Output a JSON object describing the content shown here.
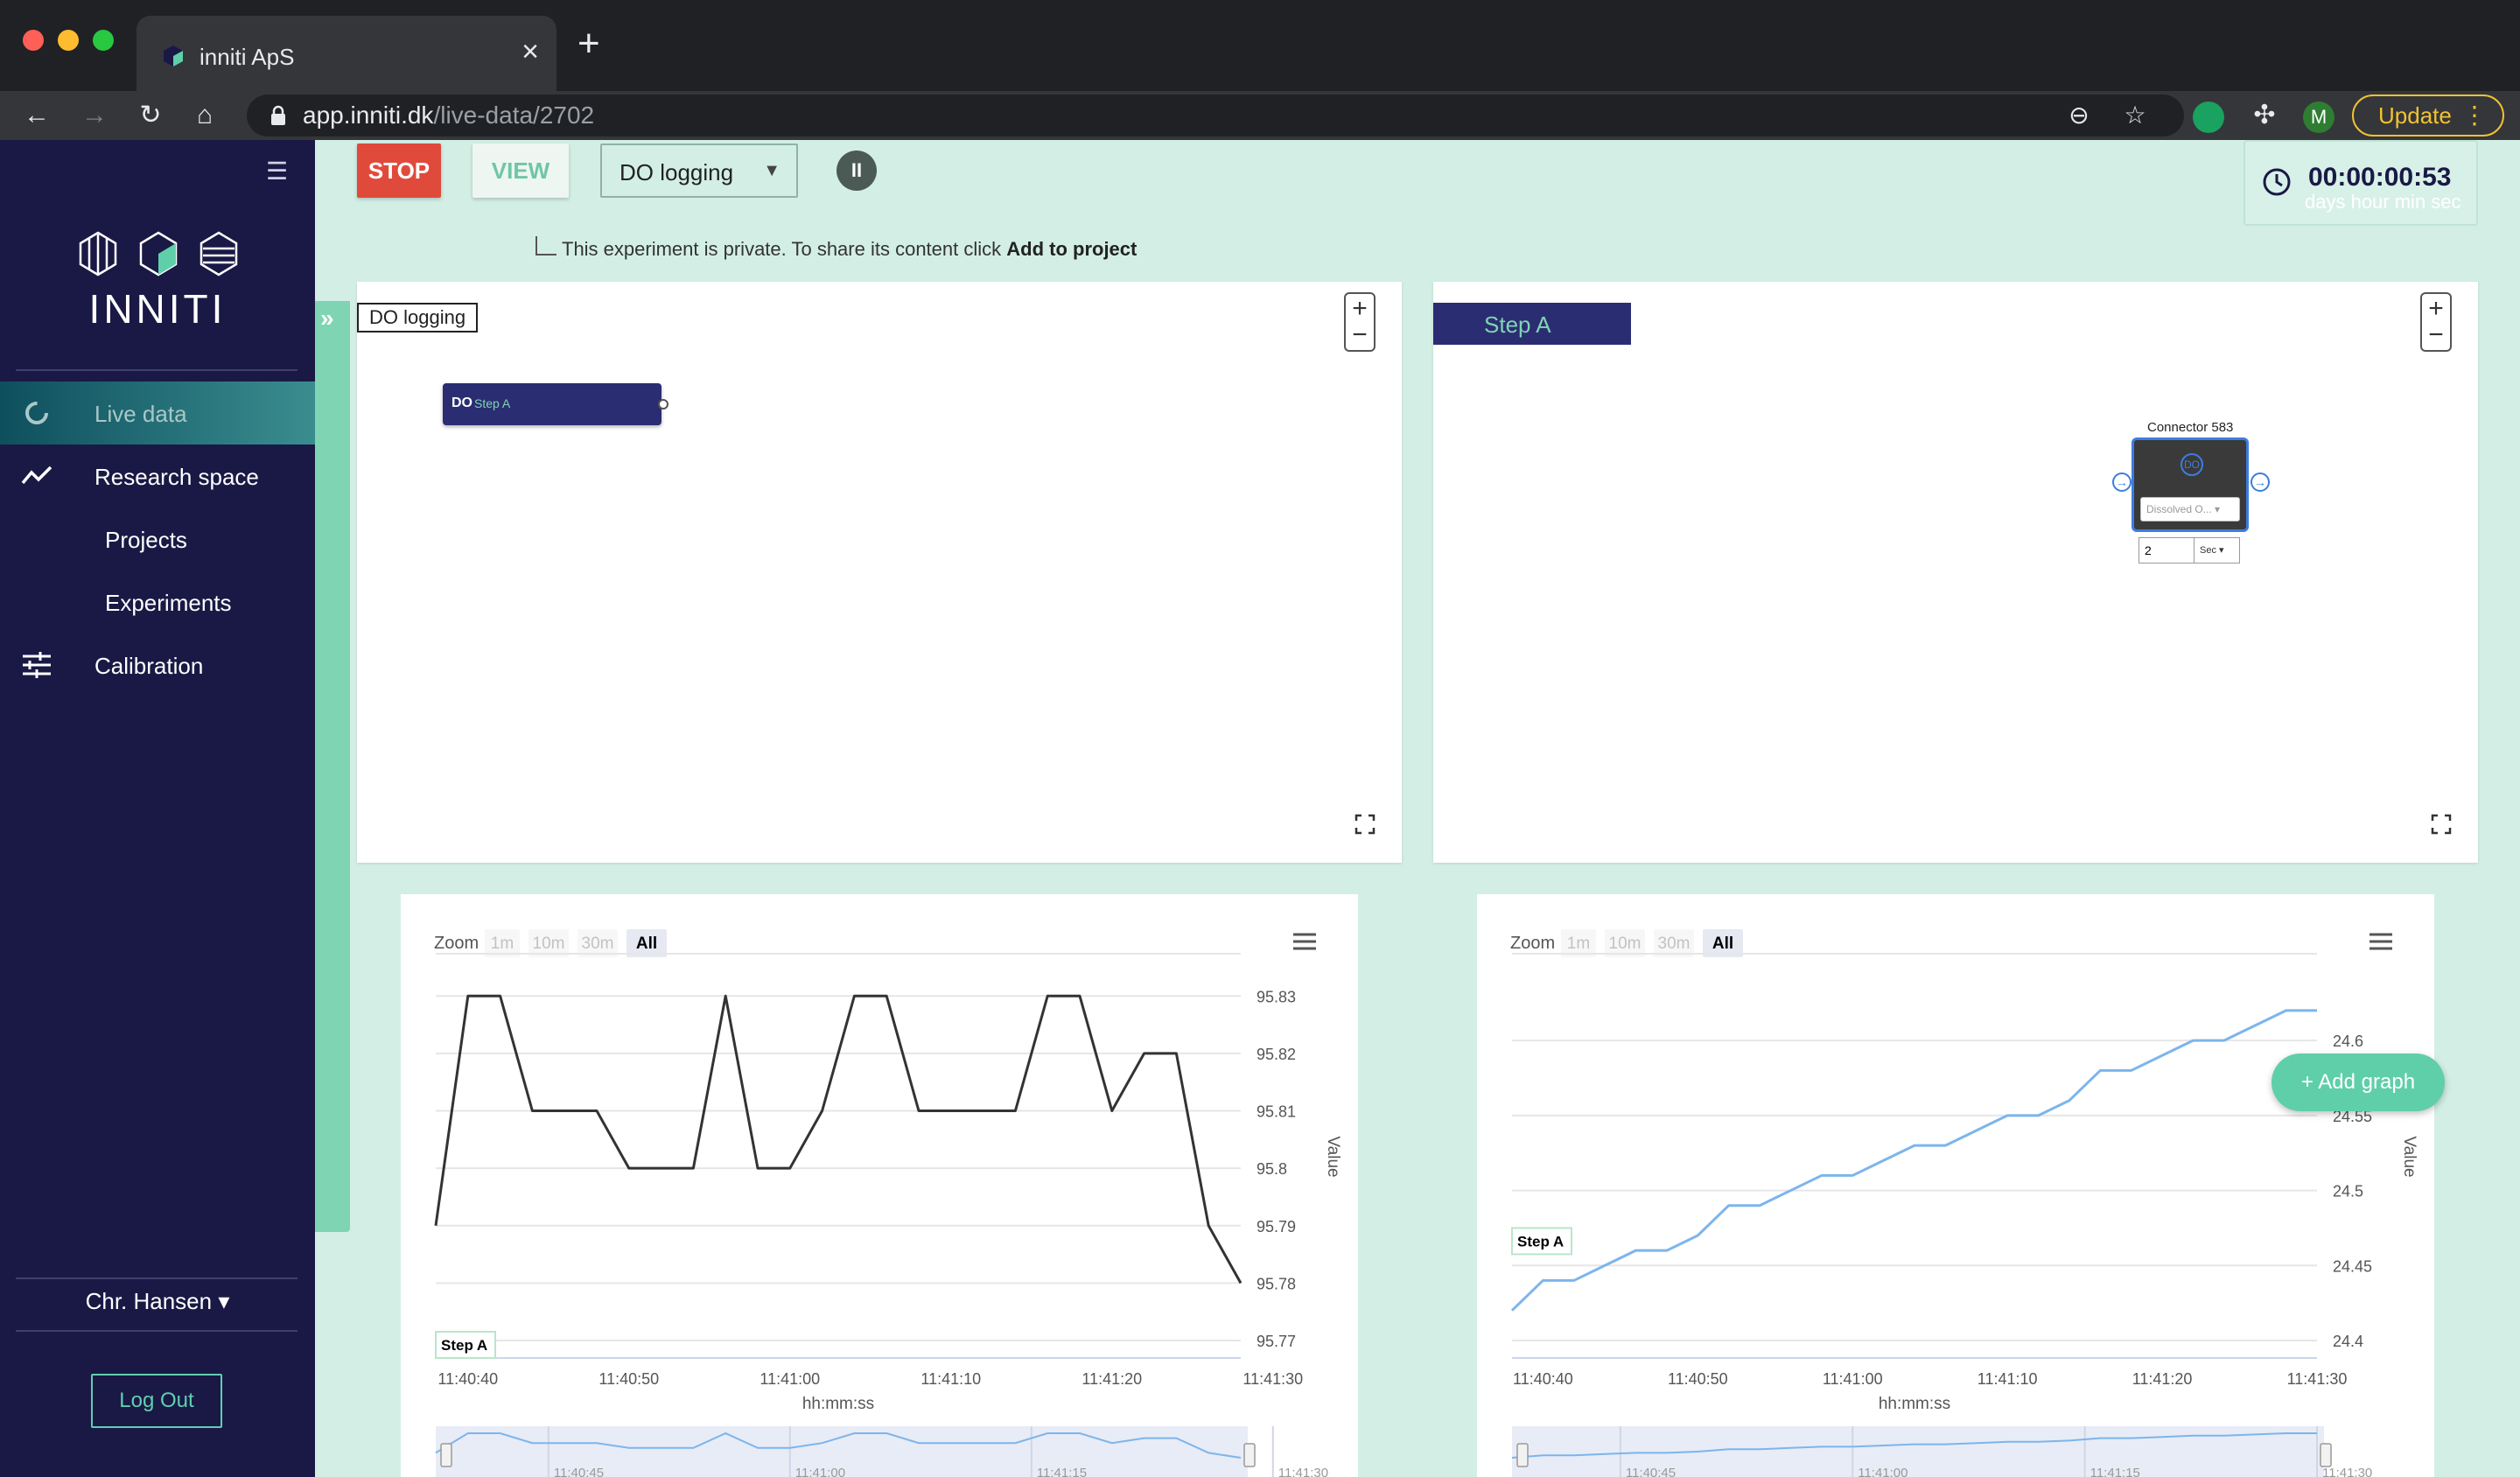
{
  "browser": {
    "tab_title": "inniti ApS",
    "url_domain": "app.inniti.dk",
    "url_path": "/live-data/2702",
    "update_label": "Update",
    "profile_initial": "M"
  },
  "sidebar": {
    "logo_text": "INNITI",
    "items": [
      {
        "label": "Live data",
        "icon": "loading-ring-icon",
        "active": true
      },
      {
        "label": "Research space",
        "icon": "trend-line-icon"
      },
      {
        "label": "Projects"
      },
      {
        "label": "Experiments"
      },
      {
        "label": "Calibration",
        "icon": "sliders-icon"
      }
    ],
    "user_name": "Chr. Hansen",
    "logout_label": "Log Out"
  },
  "controls": {
    "stop_label": "STOP",
    "view_label": "VIEW",
    "experiment_selected": "DO logging",
    "private_note": "This experiment is private. To share its content click ",
    "private_link": "Add to project"
  },
  "timer": {
    "value": "00:00:00:53",
    "units": "days hour min sec"
  },
  "flow_left": {
    "label": "DO logging",
    "node_prefix": "DO",
    "node_label": "Step A"
  },
  "flow_right": {
    "step_label": "Step A",
    "connector_title": "Connector 583",
    "connector_icon": "DO",
    "sensor_select": "Dissolved O...",
    "interval_value": "2",
    "interval_unit": "Sec"
  },
  "colors": {
    "accent": "#5fcfa9",
    "navy": "#1a1945",
    "stop": "#e04a3b",
    "series_left": "#333333",
    "series_right": "#7cb5ec"
  },
  "add_graph_label": "+ Add graph",
  "chart_data": [
    {
      "type": "line",
      "zoom_label": "Zoom",
      "zoom_options": [
        "1m",
        "10m",
        "30m",
        "All"
      ],
      "zoom_selected": "All",
      "series": [
        {
          "name": "Step A",
          "values": [
            95.79,
            95.83,
            95.83,
            95.81,
            95.81,
            95.81,
            95.8,
            95.8,
            95.8,
            95.83,
            95.8,
            95.8,
            95.81,
            95.83,
            95.83,
            95.81,
            95.81,
            95.81,
            95.81,
            95.83,
            95.83,
            95.81,
            95.82,
            95.82,
            95.79,
            95.78
          ]
        }
      ],
      "x_start": "11:40:38",
      "x_step_seconds": 2,
      "xticks": [
        "11:40:40",
        "11:40:50",
        "11:41:00",
        "11:41:10",
        "11:41:20",
        "11:41:30"
      ],
      "yticks": [
        95.77,
        95.78,
        95.79,
        95.8,
        95.81,
        95.82,
        95.83
      ],
      "ylim": [
        95.77,
        95.834
      ],
      "xlabel": "hh:mm:ss",
      "ylabel": "Value",
      "navigator_ticks": [
        "11:40:45",
        "11:41:00",
        "11:41:15",
        "11:41:30"
      ]
    },
    {
      "type": "line",
      "zoom_label": "Zoom",
      "zoom_options": [
        "1m",
        "10m",
        "30m",
        "All"
      ],
      "zoom_selected": "All",
      "series": [
        {
          "name": "Step A",
          "values": [
            24.42,
            24.44,
            24.44,
            24.45,
            24.46,
            24.46,
            24.47,
            24.49,
            24.49,
            24.5,
            24.51,
            24.51,
            24.52,
            24.53,
            24.53,
            24.54,
            24.55,
            24.55,
            24.56,
            24.58,
            24.58,
            24.59,
            24.6,
            24.6,
            24.61,
            24.62,
            24.62
          ]
        }
      ],
      "x_start": "11:40:38",
      "x_step_seconds": 2,
      "xticks": [
        "11:40:40",
        "11:40:50",
        "11:41:00",
        "11:41:10",
        "11:41:20",
        "11:41:30"
      ],
      "yticks": [
        24.4,
        24.45,
        24.5,
        24.55,
        24.6
      ],
      "ylim": [
        24.4,
        24.645
      ],
      "xlabel": "hh:mm:ss",
      "ylabel": "Value",
      "navigator_ticks": [
        "11:40:45",
        "11:41:00",
        "11:41:15",
        "11:41:30"
      ]
    }
  ]
}
